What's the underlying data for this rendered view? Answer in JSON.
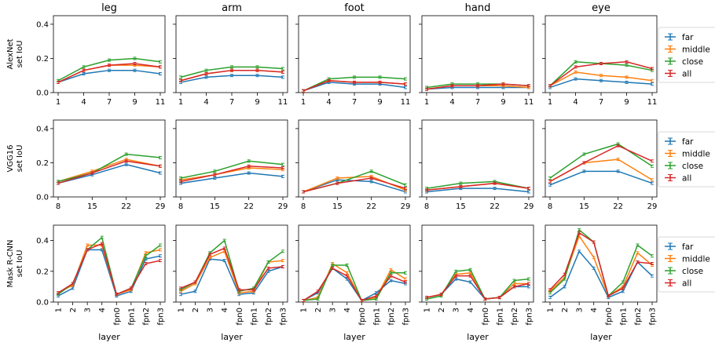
{
  "chart_data": {
    "type": "line",
    "columns": [
      "leg",
      "arm",
      "foot",
      "hand",
      "eye"
    ],
    "rows": [
      {
        "ylabel": [
          "AlexNet",
          "set IoU"
        ],
        "x": [
          "1",
          "4",
          "7",
          "9",
          "11"
        ],
        "ylim": [
          0,
          0.45
        ],
        "yticks": [
          "0.0",
          "0.2",
          "0.4"
        ]
      },
      {
        "ylabel": [
          "VGG16",
          "set IoU"
        ],
        "x": [
          "8",
          "15",
          "22",
          "29"
        ],
        "ylim": [
          0,
          0.45
        ],
        "yticks": [
          "0.0",
          "0.2",
          "0.4"
        ]
      },
      {
        "ylabel": [
          "Mask R-CNN",
          "set IoU"
        ],
        "x": [
          "1",
          "2",
          "3",
          "4",
          "fpn0",
          "fpn1",
          "fpn2",
          "fpn3"
        ],
        "ylim": [
          0,
          0.5
        ],
        "yticks": [
          "0.0",
          "0.2",
          "0.4"
        ],
        "xlabel": "layer"
      }
    ],
    "legend": {
      "entries": [
        {
          "name": "far",
          "color": "#1f77b4"
        },
        {
          "name": "middle",
          "color": "#ff7f0e"
        },
        {
          "name": "close",
          "color": "#2ca02c"
        },
        {
          "name": "all",
          "color": "#d62728"
        }
      ],
      "placement": "right"
    },
    "panels": [
      [
        {
          "far": [
            0.06,
            0.11,
            0.13,
            0.13,
            0.11
          ],
          "middle": [
            0.06,
            0.13,
            0.16,
            0.16,
            0.15
          ],
          "close": [
            0.07,
            0.15,
            0.19,
            0.2,
            0.18
          ],
          "all": [
            0.06,
            0.13,
            0.16,
            0.17,
            0.15
          ]
        },
        {
          "far": [
            0.06,
            0.09,
            0.1,
            0.1,
            0.09
          ],
          "middle": [
            0.07,
            0.11,
            0.13,
            0.13,
            0.12
          ],
          "close": [
            0.09,
            0.13,
            0.15,
            0.15,
            0.14
          ],
          "all": [
            0.07,
            0.11,
            0.13,
            0.13,
            0.12
          ]
        },
        {
          "far": [
            0.01,
            0.06,
            0.05,
            0.05,
            0.03
          ],
          "middle": [
            0.01,
            0.07,
            0.06,
            0.06,
            0.05
          ],
          "close": [
            0.01,
            0.08,
            0.09,
            0.09,
            0.08
          ],
          "all": [
            0.01,
            0.07,
            0.06,
            0.06,
            0.05
          ]
        },
        {
          "far": [
            0.02,
            0.03,
            0.03,
            0.03,
            0.03
          ],
          "middle": [
            0.02,
            0.04,
            0.04,
            0.04,
            0.03
          ],
          "close": [
            0.03,
            0.05,
            0.05,
            0.05,
            0.04
          ],
          "all": [
            0.02,
            0.04,
            0.04,
            0.05,
            0.04
          ]
        },
        {
          "far": [
            0.03,
            0.08,
            0.07,
            0.06,
            0.05
          ],
          "middle": [
            0.04,
            0.12,
            0.1,
            0.09,
            0.07
          ],
          "close": [
            0.04,
            0.18,
            0.17,
            0.16,
            0.13
          ],
          "all": [
            0.04,
            0.15,
            0.17,
            0.18,
            0.14
          ]
        }
      ],
      [
        {
          "far": [
            0.08,
            0.13,
            0.19,
            0.14
          ],
          "middle": [
            0.09,
            0.15,
            0.22,
            0.18
          ],
          "close": [
            0.09,
            0.14,
            0.25,
            0.23
          ],
          "all": [
            0.08,
            0.14,
            0.21,
            0.18
          ]
        },
        {
          "far": [
            0.08,
            0.11,
            0.14,
            0.12
          ],
          "middle": [
            0.1,
            0.13,
            0.17,
            0.16
          ],
          "close": [
            0.11,
            0.15,
            0.21,
            0.19
          ],
          "all": [
            0.09,
            0.13,
            0.18,
            0.17
          ]
        },
        {
          "far": [
            0.03,
            0.1,
            0.09,
            0.03
          ],
          "middle": [
            0.03,
            0.11,
            0.12,
            0.04
          ],
          "close": [
            0.03,
            0.08,
            0.15,
            0.07
          ],
          "all": [
            0.03,
            0.08,
            0.11,
            0.05
          ]
        },
        {
          "far": [
            0.03,
            0.05,
            0.05,
            0.03
          ],
          "middle": [
            0.04,
            0.06,
            0.08,
            0.05
          ],
          "close": [
            0.05,
            0.08,
            0.09,
            0.05
          ],
          "all": [
            0.04,
            0.06,
            0.08,
            0.05
          ]
        },
        {
          "far": [
            0.07,
            0.15,
            0.15,
            0.08
          ],
          "middle": [
            0.09,
            0.2,
            0.22,
            0.1
          ],
          "close": [
            0.11,
            0.25,
            0.31,
            0.18
          ],
          "all": [
            0.09,
            0.2,
            0.3,
            0.21
          ]
        }
      ],
      [
        {
          "far": [
            0.04,
            0.09,
            0.34,
            0.34,
            0.04,
            0.07,
            0.28,
            0.3
          ],
          "middle": [
            0.06,
            0.11,
            0.37,
            0.37,
            0.05,
            0.08,
            0.32,
            0.34
          ],
          "close": [
            0.05,
            0.12,
            0.34,
            0.42,
            0.05,
            0.09,
            0.3,
            0.37
          ],
          "all": [
            0.06,
            0.12,
            0.34,
            0.38,
            0.05,
            0.09,
            0.25,
            0.27
          ]
        },
        {
          "far": [
            0.05,
            0.07,
            0.28,
            0.27,
            0.05,
            0.06,
            0.2,
            0.23
          ],
          "middle": [
            0.07,
            0.12,
            0.29,
            0.33,
            0.06,
            0.07,
            0.26,
            0.27
          ],
          "close": [
            0.08,
            0.13,
            0.32,
            0.4,
            0.07,
            0.09,
            0.26,
            0.33
          ],
          "all": [
            0.09,
            0.13,
            0.31,
            0.35,
            0.08,
            0.08,
            0.22,
            0.23
          ]
        },
        {
          "far": [
            0.01,
            0.06,
            0.22,
            0.15,
            0.01,
            0.06,
            0.14,
            0.12
          ],
          "middle": [
            0.01,
            0.03,
            0.25,
            0.19,
            0.01,
            0.03,
            0.21,
            0.15
          ],
          "close": [
            0.01,
            0.02,
            0.24,
            0.24,
            0.01,
            0.02,
            0.19,
            0.19
          ],
          "all": [
            0.01,
            0.07,
            0.22,
            0.17,
            0.01,
            0.04,
            0.17,
            0.13
          ]
        },
        {
          "far": [
            0.03,
            0.05,
            0.15,
            0.13,
            0.02,
            0.03,
            0.1,
            0.1
          ],
          "middle": [
            0.03,
            0.05,
            0.18,
            0.19,
            0.02,
            0.03,
            0.12,
            0.12
          ],
          "close": [
            0.02,
            0.04,
            0.2,
            0.21,
            0.02,
            0.03,
            0.14,
            0.15
          ],
          "all": [
            0.03,
            0.05,
            0.17,
            0.17,
            0.02,
            0.03,
            0.1,
            0.12
          ]
        },
        {
          "far": [
            0.03,
            0.1,
            0.33,
            0.22,
            0.03,
            0.07,
            0.26,
            0.17
          ],
          "middle": [
            0.07,
            0.16,
            0.43,
            0.29,
            0.04,
            0.1,
            0.32,
            0.24
          ],
          "close": [
            0.06,
            0.15,
            0.47,
            0.39,
            0.04,
            0.13,
            0.37,
            0.3
          ],
          "all": [
            0.08,
            0.18,
            0.45,
            0.39,
            0.04,
            0.09,
            0.26,
            0.25
          ]
        }
      ]
    ]
  }
}
